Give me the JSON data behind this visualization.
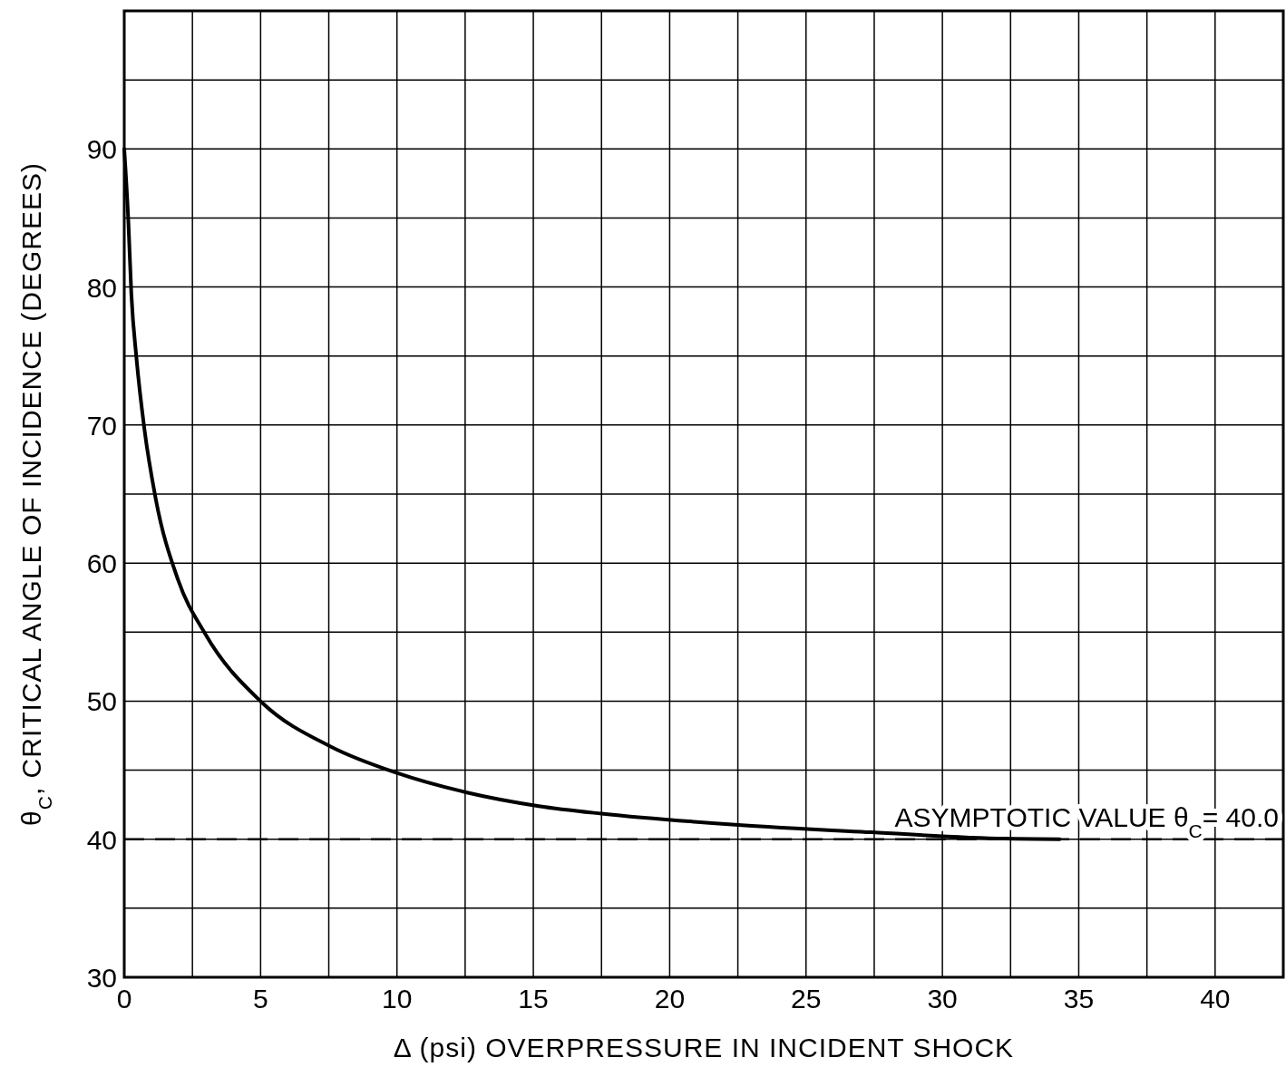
{
  "chart_data": {
    "type": "line",
    "xlabel": "Δ (psi) OVERPRESSURE IN INCIDENT SHOCK",
    "ylabel": "θ$_{C}$, CRITICAL ANGLE OF INCIDENCE (DEGREES)",
    "series": [
      {
        "color": "#000000",
        "x": [
          0,
          0.15,
          0.26,
          0.45,
          0.74,
          1.15,
          1.97,
          2.96,
          5.05,
          7.58,
          10.0,
          12.53,
          15.2,
          17.5,
          22.4,
          27.4,
          32.3,
          34.3
        ],
        "values": [
          90,
          84.8,
          79.5,
          74.8,
          69.7,
          64.7,
          58.8,
          54.9,
          49.9,
          46.7,
          44.8,
          43.4,
          42.4,
          41.85,
          41.05,
          40.5,
          40.04,
          40.0
        ]
      }
    ],
    "xlim": [
      0,
      42.5
    ],
    "ylim": [
      30,
      100
    ],
    "xticks": [
      0,
      {
        "value": 2.5,
        "label": null
      },
      5,
      {
        "value": 7.5,
        "label": null
      },
      10,
      {
        "value": 12.5,
        "label": null
      },
      15,
      {
        "value": 17.5,
        "label": null
      },
      20,
      {
        "value": 22.5,
        "label": null
      },
      25,
      {
        "value": 27.5,
        "label": null
      },
      30,
      {
        "value": 32.5,
        "label": null
      },
      35,
      {
        "value": 37.5,
        "label": null
      },
      40
    ],
    "yticks": [
      30,
      {
        "value": 35,
        "label": null
      },
      40,
      {
        "value": 45,
        "label": null
      },
      50,
      {
        "value": 55,
        "label": null
      },
      60,
      {
        "value": 65,
        "label": null
      },
      70,
      {
        "value": 75,
        "label": null
      },
      80,
      {
        "value": 85,
        "label": null
      },
      90,
      {
        "value": 95,
        "label": null
      }
    ],
    "grid": true,
    "marker": "none",
    "line_style": "solid",
    "ref_lines": [
      {
        "axis": "y",
        "value": 40,
        "label": "ASYMPTOTIC VALUE θ$_{C}$= 40.0",
        "line_style": "dashed",
        "color": "#000000"
      }
    ]
  }
}
